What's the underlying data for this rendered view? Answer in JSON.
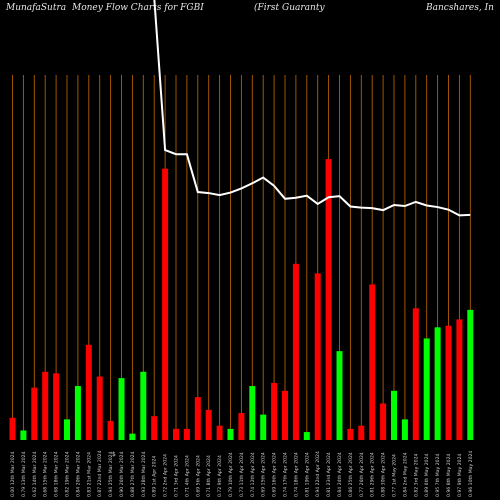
{
  "header": {
    "source": "MunafaSutra",
    "chart_name": "Money Flow  Charts for FGBI",
    "company_part1": "(First Guaranty",
    "company_part2": "Bancshares,  In"
  },
  "chart_data": {
    "type": "bar",
    "title": "MunafaSutra  Money Flow  Charts for FGBI",
    "subtitle": "(First Guaranty Bancshares, In",
    "colors": {
      "up": "#00ff00",
      "down": "#ff0000",
      "price_line": "#ffffff",
      "grid": "#b05e00",
      "background": "#000000"
    },
    "categories": [
      "0.00 12th Mar 2024",
      "0.79 13th Mar 2024",
      "0.62 14th Mar 2024",
      "0.68 15th Mar 2024",
      "0.68 18th Mar 2024",
      "0.82 19th Mar 2024",
      "0.84 20th Mar 2024",
      "0.83 21st Mar 2024",
      "0.87 22nd Mar 2024",
      "0.94 25th Mar 2024",
      "0.90 26th Mar 2024",
      "0.88 27th Mar 2024",
      "0.93 28th Mar 2024",
      "0.89 1st Apr 2024",
      "0.72 2nd Apr 2024",
      "0.71 3rd Apr 2024",
      "0.71 4th Apr 2024",
      "0.69 5th Apr 2024",
      "0.71 8th Apr 2024",
      "0.72 9th Apr 2024",
      "0.79 10th Apr 2024",
      "0.73 11th Apr 2024",
      "0.74 12th Apr 2024",
      "0.69 15th Apr 2024",
      "0.69 16th Apr 2024",
      "0.74 17th Apr 2024",
      "0.74 18th Apr 2024",
      "0.81 19th Apr 2024",
      "0.94 22nd Apr 2024",
      "0.81 23rd Apr 2024",
      "0.84 24th Apr 2024",
      "0.86 25th Apr 2024",
      "0.77 26th Apr 2024",
      "0.81 29th Apr 2024",
      "0.88 30th Apr 2024",
      "0.77 1st May 2024",
      "0.84 2nd May 2024",
      "0.82 3rd May 2024",
      "0.89 6th May 2024",
      "0.95 7th May 2024",
      "0.96 8th May 2024",
      "0.97 9th May 2024",
      "0.96 10th May 2024"
    ],
    "values": [
      14,
      6,
      33,
      43,
      42,
      13,
      34,
      60,
      40,
      12,
      39,
      4,
      43,
      15,
      171,
      7,
      7,
      27,
      19,
      9,
      7,
      17,
      34,
      16,
      36,
      31,
      111,
      5,
      105,
      177,
      56,
      7,
      9,
      98,
      23,
      31,
      13,
      83,
      64,
      71,
      72,
      76,
      82
    ],
    "direction": [
      "down",
      "up",
      "down",
      "down",
      "down",
      "up",
      "up",
      "down",
      "down",
      "down",
      "up",
      "up",
      "up",
      "down",
      "down",
      "down",
      "down",
      "down",
      "down",
      "down",
      "up",
      "down",
      "up",
      "up",
      "down",
      "down",
      "down",
      "up",
      "down",
      "down",
      "up",
      "down",
      "down",
      "down",
      "down",
      "up",
      "up",
      "down",
      "up",
      "up",
      "down",
      "down",
      "up"
    ],
    "price_line": [
      null,
      550,
      530,
      550,
      570,
      585,
      600,
      610,
      600,
      590,
      565,
      540,
      515,
      490,
      195,
      187,
      187,
      114,
      112,
      108,
      113,
      121,
      131,
      142,
      126,
      101,
      103,
      107,
      91,
      104,
      106,
      86,
      84,
      83,
      79,
      89,
      87,
      95,
      88,
      85,
      80,
      69,
      70
    ],
    "price_line_note": "arbitrary relative units; higher = higher price",
    "xlabel": "",
    "ylabel": "",
    "ylim": [
      0,
      230
    ],
    "grid": true,
    "dollar_marker": "$"
  }
}
